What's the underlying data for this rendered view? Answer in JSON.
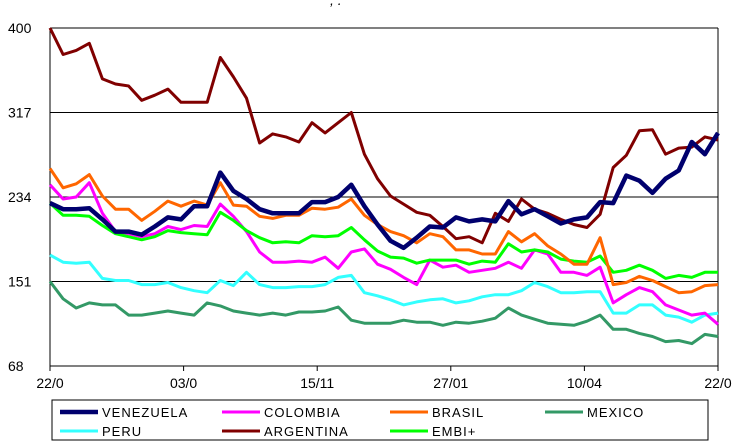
{
  "header_fragment": ", .",
  "chart_data": {
    "type": "line",
    "ylim": [
      68,
      400
    ],
    "yticks": [
      68,
      151,
      234,
      317,
      400
    ],
    "x_tick_labels": [
      "22/0",
      "03/0",
      "15/11",
      "27/01",
      "10/04",
      "22/0"
    ],
    "grid": "horizontal",
    "legend_position": "bottom",
    "series": [
      {
        "name": "VENEZUELA",
        "color": "#00006e",
        "values": [
          228,
          222,
          222,
          223,
          212,
          200,
          200,
          197,
          205,
          214,
          212,
          225,
          225,
          258,
          240,
          232,
          222,
          218,
          218,
          218,
          229,
          229,
          234,
          246,
          225,
          207,
          191,
          184,
          194,
          205,
          204,
          214,
          210,
          212,
          210,
          230,
          217,
          222,
          215,
          208,
          212,
          214,
          229,
          228,
          255,
          250,
          238,
          252,
          260,
          288,
          276,
          297
        ]
      },
      {
        "name": "COLOMBIA",
        "color": "#ff00ff",
        "values": [
          246,
          232,
          234,
          248,
          218,
          200,
          198,
          195,
          198,
          205,
          202,
          206,
          205,
          227,
          215,
          200,
          180,
          170,
          170,
          171,
          170,
          175,
          164,
          180,
          183,
          168,
          163,
          155,
          148,
          172,
          165,
          167,
          160,
          162,
          164,
          170,
          164,
          182,
          178,
          160,
          160,
          157,
          165,
          130,
          138,
          145,
          141,
          128,
          123,
          118,
          120,
          109
        ]
      },
      {
        "name": "BRASIL",
        "color": "#ff6600",
        "values": [
          262,
          243,
          247,
          256,
          235,
          222,
          222,
          211,
          220,
          230,
          225,
          230,
          226,
          248,
          226,
          225,
          215,
          213,
          216,
          216,
          223,
          222,
          224,
          232,
          216,
          207,
          200,
          196,
          189,
          198,
          195,
          182,
          182,
          178,
          178,
          200,
          190,
          198,
          186,
          178,
          168,
          168,
          194,
          148,
          150,
          156,
          152,
          146,
          140,
          141,
          147,
          148
        ]
      },
      {
        "name": "MEXICO",
        "color": "#339966",
        "values": [
          151,
          134,
          125,
          130,
          128,
          128,
          118,
          118,
          120,
          122,
          120,
          118,
          130,
          127,
          122,
          120,
          118,
          120,
          118,
          121,
          121,
          122,
          126,
          113,
          110,
          110,
          110,
          113,
          111,
          111,
          108,
          111,
          110,
          112,
          115,
          125,
          118,
          114,
          110,
          109,
          108,
          112,
          118,
          104,
          104,
          100,
          97,
          92,
          93,
          90,
          99,
          97
        ]
      },
      {
        "name": "PERU",
        "color": "#33ffff",
        "values": [
          177,
          170,
          169,
          170,
          154,
          152,
          152,
          148,
          148,
          150,
          145,
          142,
          140,
          152,
          147,
          160,
          148,
          145,
          145,
          146,
          146,
          148,
          155,
          157,
          140,
          137,
          133,
          128,
          131,
          133,
          134,
          130,
          132,
          136,
          138,
          138,
          142,
          150,
          146,
          140,
          140,
          141,
          141,
          120,
          120,
          128,
          128,
          118,
          116,
          111,
          118,
          120
        ]
      },
      {
        "name": "ARGENTINA",
        "color": "#800000",
        "values": [
          400,
          374,
          378,
          385,
          350,
          345,
          343,
          329,
          334,
          340,
          327,
          327,
          327,
          371,
          352,
          331,
          287,
          296,
          293,
          288,
          307,
          297,
          307,
          317,
          276,
          252,
          235,
          227,
          219,
          216,
          205,
          193,
          195,
          189,
          218,
          210,
          232,
          222,
          218,
          212,
          207,
          204,
          217,
          263,
          275,
          299,
          300,
          276,
          282,
          283,
          293,
          290
        ]
      },
      {
        "name": "EMBI+",
        "color": "#00ff00",
        "values": [
          228,
          216,
          216,
          215,
          206,
          198,
          195,
          192,
          195,
          201,
          199,
          198,
          197,
          219,
          211,
          201,
          194,
          189,
          190,
          189,
          196,
          195,
          196,
          204,
          192,
          181,
          175,
          174,
          169,
          172,
          172,
          172,
          168,
          171,
          170,
          188,
          180,
          182,
          180,
          173,
          171,
          170,
          176,
          160,
          162,
          167,
          162,
          154,
          157,
          155,
          160,
          160
        ]
      }
    ]
  }
}
